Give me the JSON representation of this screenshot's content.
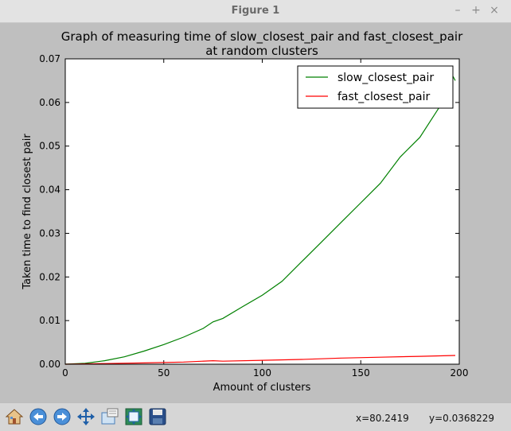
{
  "window": {
    "title": "Figure 1",
    "controls": [
      "–",
      "+",
      "×"
    ]
  },
  "toolbar": {
    "icons": [
      "home-icon",
      "back-icon",
      "forward-icon",
      "pan-icon",
      "zoom-icon",
      "subplots-icon",
      "save-icon"
    ],
    "coord_x": "x=80.2419",
    "coord_y": "y=0.0368229"
  },
  "chart_data": {
    "type": "line",
    "title_line1": "Graph of measuring time of slow_closest_pair and fast_closest_pair",
    "title_line2": "at random clusters",
    "xlabel": "Amount of clusters",
    "ylabel": "Taken time to find closest pair",
    "xlim": [
      0,
      200
    ],
    "ylim": [
      0,
      0.07
    ],
    "xticks": [
      "0",
      "50",
      "100",
      "150",
      "200"
    ],
    "yticks": [
      "0.00",
      "0.01",
      "0.02",
      "0.03",
      "0.04",
      "0.05",
      "0.06",
      "0.07"
    ],
    "legend_position": "top-right",
    "series": [
      {
        "name": "slow_closest_pair",
        "color": "#008000",
        "x": [
          0,
          10,
          20,
          30,
          40,
          50,
          60,
          70,
          75,
          80,
          90,
          100,
          110,
          120,
          130,
          140,
          150,
          160,
          170,
          180,
          190,
          195,
          198
        ],
        "y": [
          0,
          0.0002,
          0.0008,
          0.0017,
          0.003,
          0.0045,
          0.0062,
          0.0082,
          0.0097,
          0.0105,
          0.0132,
          0.0158,
          0.019,
          0.0235,
          0.028,
          0.0325,
          0.037,
          0.0415,
          0.0475,
          0.052,
          0.059,
          0.0675,
          0.065
        ]
      },
      {
        "name": "fast_closest_pair",
        "color": "#ff0000",
        "x": [
          0,
          20,
          40,
          60,
          75,
          80,
          100,
          120,
          140,
          160,
          180,
          198
        ],
        "y": [
          0,
          0.00015,
          0.0003,
          0.0005,
          0.0008,
          0.0007,
          0.0009,
          0.0011,
          0.0014,
          0.0016,
          0.0018,
          0.002
        ]
      }
    ]
  }
}
